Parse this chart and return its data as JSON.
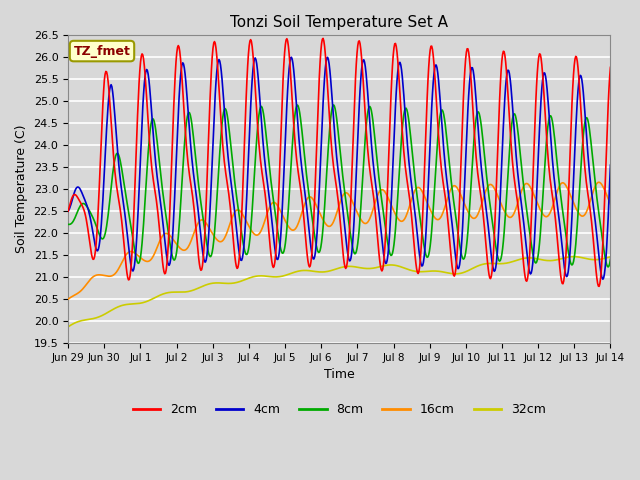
{
  "title": "Tonzi Soil Temperature Set A",
  "xlabel": "Time",
  "ylabel": "Soil Temperature (C)",
  "ylim": [
    19.5,
    26.5
  ],
  "annotation_text": "TZ_fmet",
  "annotation_color": "#8B0000",
  "annotation_bg": "#FFFFCC",
  "annotation_border": "#999900",
  "bg_color": "#D8D8D8",
  "plot_bg": "#D8D8D8",
  "grid_color": "white",
  "series": {
    "2cm": {
      "color": "#FF0000",
      "lw": 1.2
    },
    "4cm": {
      "color": "#0000CC",
      "lw": 1.2
    },
    "8cm": {
      "color": "#00AA00",
      "lw": 1.2
    },
    "16cm": {
      "color": "#FF8C00",
      "lw": 1.2
    },
    "32cm": {
      "color": "#CCCC00",
      "lw": 1.2
    }
  },
  "xtick_labels": [
    "Jun 29",
    "Jun 30",
    "Jul 1",
    "Jul 2",
    "Jul 3",
    "Jul 4",
    "Jul 5",
    "Jul 6",
    "Jul 7",
    "Jul 8",
    "Jul 9",
    "Jul 10",
    "Jul 11",
    "Jul 12",
    "Jul 13",
    "Jul 14"
  ],
  "xtick_positions": [
    0,
    1,
    2,
    3,
    4,
    5,
    6,
    7,
    8,
    9,
    10,
    11,
    12,
    13,
    14,
    15
  ],
  "yticks": [
    19.5,
    20.0,
    20.5,
    21.0,
    21.5,
    22.0,
    22.5,
    23.0,
    23.5,
    24.0,
    24.5,
    25.0,
    25.5,
    26.0,
    26.5
  ]
}
